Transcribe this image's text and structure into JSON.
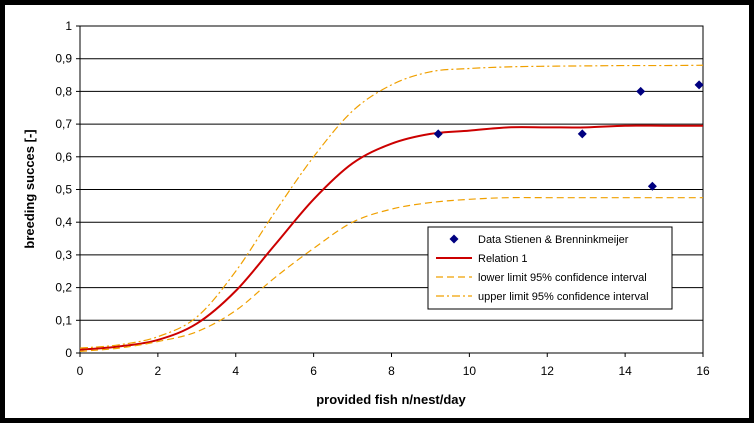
{
  "chart_data": {
    "type": "line",
    "title": "",
    "xlabel": "provided fish n/nest/day",
    "ylabel": "breeding succes [-]",
    "xlim": [
      0,
      16
    ],
    "ylim": [
      0,
      1
    ],
    "x_ticks": [
      "0",
      "2",
      "4",
      "6",
      "8",
      "10",
      "12",
      "14",
      "16"
    ],
    "y_ticks": [
      "0",
      "0,1",
      "0,2",
      "0,3",
      "0,4",
      "0,5",
      "0,6",
      "0,7",
      "0,8",
      "0,9",
      "1"
    ],
    "grid": "horizontal",
    "legend_position": "lower-right",
    "series": [
      {
        "name": "Data Stienen & Brenninkmeijer",
        "kind": "scatter",
        "marker": "diamond",
        "color": "#000080",
        "points": [
          [
            9.2,
            0.67
          ],
          [
            12.9,
            0.67
          ],
          [
            14.4,
            0.8
          ],
          [
            14.7,
            0.51
          ],
          [
            15.9,
            0.82
          ]
        ]
      },
      {
        "name": "Relation 1",
        "kind": "line",
        "style": "solid",
        "color": "#cc0000",
        "points": [
          [
            0,
            0.01
          ],
          [
            1,
            0.02
          ],
          [
            2,
            0.04
          ],
          [
            3,
            0.09
          ],
          [
            4,
            0.19
          ],
          [
            5,
            0.33
          ],
          [
            6,
            0.47
          ],
          [
            7,
            0.58
          ],
          [
            8,
            0.64
          ],
          [
            9,
            0.67
          ],
          [
            10,
            0.68
          ],
          [
            11,
            0.69
          ],
          [
            12,
            0.69
          ],
          [
            13,
            0.69
          ],
          [
            14,
            0.695
          ],
          [
            15,
            0.695
          ],
          [
            16,
            0.695
          ]
        ]
      },
      {
        "name": "lower limit 95% confidence interval",
        "kind": "line",
        "style": "dashed",
        "color": "#f0a000",
        "points": [
          [
            0,
            0.005
          ],
          [
            1,
            0.015
          ],
          [
            2,
            0.035
          ],
          [
            3,
            0.065
          ],
          [
            4,
            0.13
          ],
          [
            5,
            0.23
          ],
          [
            6,
            0.32
          ],
          [
            7,
            0.4
          ],
          [
            8,
            0.44
          ],
          [
            9,
            0.46
          ],
          [
            10,
            0.47
          ],
          [
            11,
            0.475
          ],
          [
            12,
            0.475
          ],
          [
            13,
            0.475
          ],
          [
            14,
            0.475
          ],
          [
            15,
            0.475
          ],
          [
            16,
            0.475
          ]
        ]
      },
      {
        "name": "upper limit 95% confidence interval",
        "kind": "line",
        "style": "dashdot",
        "color": "#f0a000",
        "points": [
          [
            0,
            0.015
          ],
          [
            1,
            0.025
          ],
          [
            2,
            0.05
          ],
          [
            3,
            0.11
          ],
          [
            4,
            0.25
          ],
          [
            5,
            0.43
          ],
          [
            6,
            0.6
          ],
          [
            7,
            0.74
          ],
          [
            8,
            0.82
          ],
          [
            9,
            0.86
          ],
          [
            10,
            0.87
          ],
          [
            11,
            0.875
          ],
          [
            12,
            0.877
          ],
          [
            13,
            0.878
          ],
          [
            14,
            0.879
          ],
          [
            15,
            0.879
          ],
          [
            16,
            0.88
          ]
        ]
      }
    ]
  }
}
